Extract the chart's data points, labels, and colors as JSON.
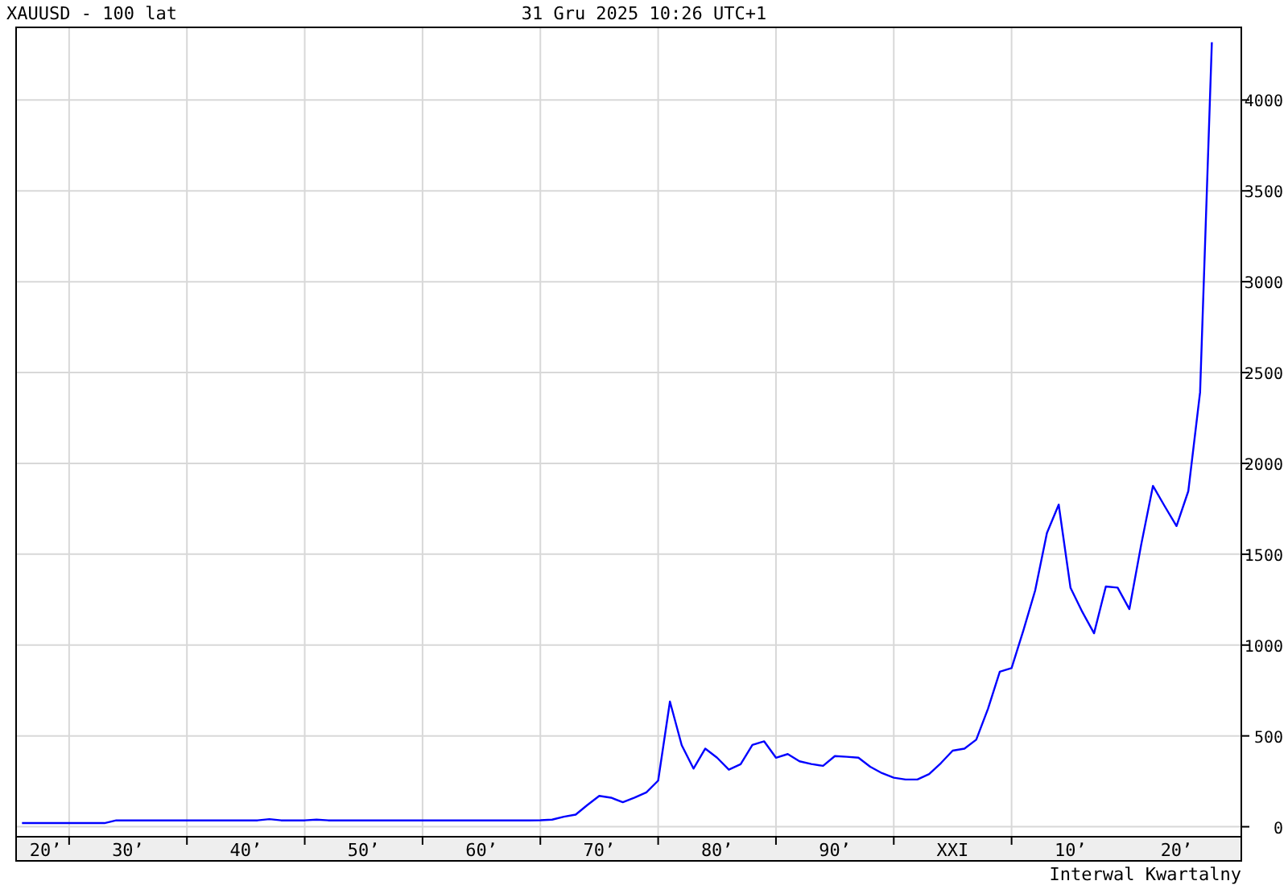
{
  "chart_data": {
    "type": "line",
    "title": "XAUUSD - 100 lat",
    "subtitle": "31 Gru 2025 10:26 UTC+1",
    "annotations": [
      "Interwal Kwartalny"
    ],
    "categories": [
      null,
      null,
      "20’",
      null,
      null,
      null,
      null,
      null,
      null,
      "30’",
      null,
      null,
      null,
      null,
      null,
      null,
      null,
      null,
      null,
      "40’",
      null,
      null,
      null,
      null,
      null,
      null,
      null,
      null,
      null,
      "50’",
      null,
      null,
      null,
      null,
      null,
      null,
      null,
      null,
      null,
      "60’",
      null,
      null,
      null,
      null,
      null,
      null,
      null,
      null,
      null,
      "70’",
      null,
      null,
      null,
      null,
      null,
      null,
      null,
      null,
      null,
      "80’",
      null,
      null,
      null,
      null,
      null,
      null,
      null,
      null,
      null,
      "90’",
      null,
      null,
      null,
      null,
      null,
      null,
      null,
      null,
      null,
      "XXI",
      null,
      null,
      null,
      null,
      null,
      null,
      null,
      null,
      null,
      "10’",
      null,
      null,
      null,
      null,
      null,
      null,
      null,
      null,
      "20’",
      null,
      null,
      null,
      null,
      null
    ],
    "ylim": [
      -55,
      4400
    ],
    "yticks": [
      0,
      500,
      1000,
      1500,
      2000,
      2500,
      3000,
      3500,
      4000
    ],
    "grid": true,
    "series": [
      {
        "color": "#0000ff",
        "values": [
          20,
          20,
          20,
          20,
          20,
          20,
          20,
          20,
          35,
          35,
          35,
          35,
          35,
          35,
          35,
          35,
          35,
          35,
          35,
          35,
          35,
          42,
          35,
          35,
          35,
          39,
          35,
          35,
          35,
          35,
          35,
          35,
          35,
          35,
          35,
          35,
          35,
          35,
          35,
          35,
          35,
          35,
          35,
          35,
          36,
          39,
          55,
          67,
          120,
          170,
          160,
          135,
          160,
          189,
          254,
          689,
          449,
          320,
          430,
          380,
          314,
          344,
          450,
          470,
          380,
          400,
          360,
          345,
          335,
          389,
          385,
          380,
          330,
          295,
          270,
          260,
          260,
          290,
          350,
          419,
          430,
          479,
          650,
          853,
          873,
          1080,
          1300,
          1617,
          1773,
          1316,
          1183,
          1065,
          1322,
          1316,
          1198,
          1552,
          1876,
          1764,
          1655,
          1847,
          2391,
          4318,
          null,
          null
        ]
      }
    ]
  }
}
